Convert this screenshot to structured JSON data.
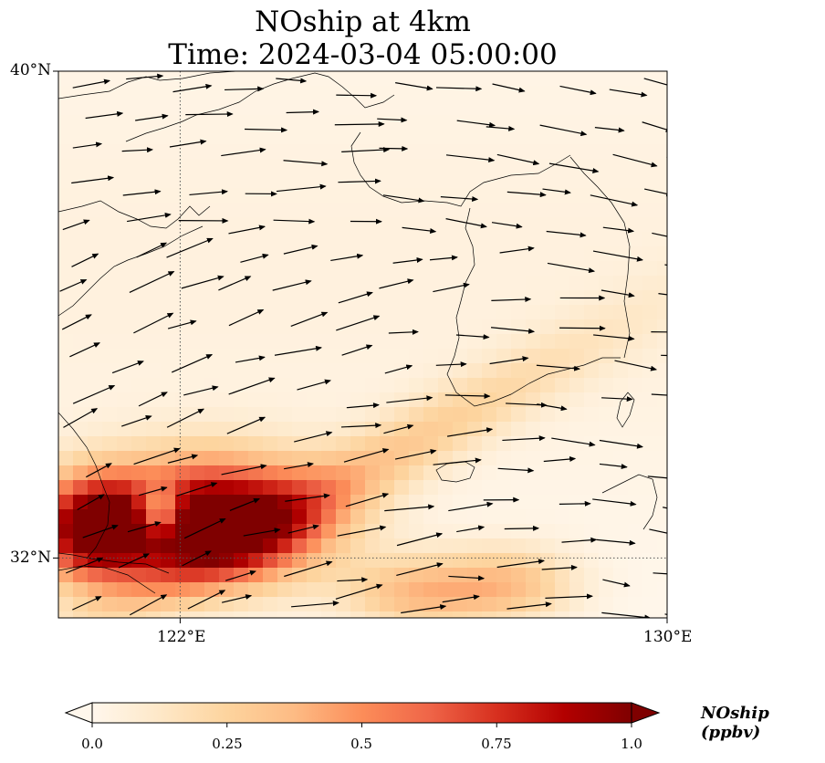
{
  "title_line1": "NOship at 4km",
  "title_line2": "Time: 2024-03-04 05:00:00",
  "lat_labels": [
    "40°N",
    "32°N"
  ],
  "lon_labels": [
    "122°E",
    "130°E"
  ],
  "colorbar": {
    "label": "NOship (ppbv)",
    "ticks": [
      "0.0",
      "0.25",
      "0.5",
      "0.75",
      "1.0"
    ],
    "range": [
      0.0,
      1.0
    ],
    "extend": "both",
    "colormap": "OrRd",
    "colors": [
      "#fff7ec",
      "#fee8c8",
      "#fdd49e",
      "#fdbb84",
      "#fc8d59",
      "#ef6548",
      "#d7301f",
      "#b30000",
      "#7f0000"
    ]
  },
  "map": {
    "projection": "PlateCarree",
    "lon_range": [
      120,
      130
    ],
    "lat_range": [
      31,
      40
    ],
    "gridlines": {
      "lon": [
        122,
        130
      ],
      "lat": [
        32,
        40
      ],
      "style": "dotted"
    },
    "features": [
      "coastline"
    ]
  }
}
